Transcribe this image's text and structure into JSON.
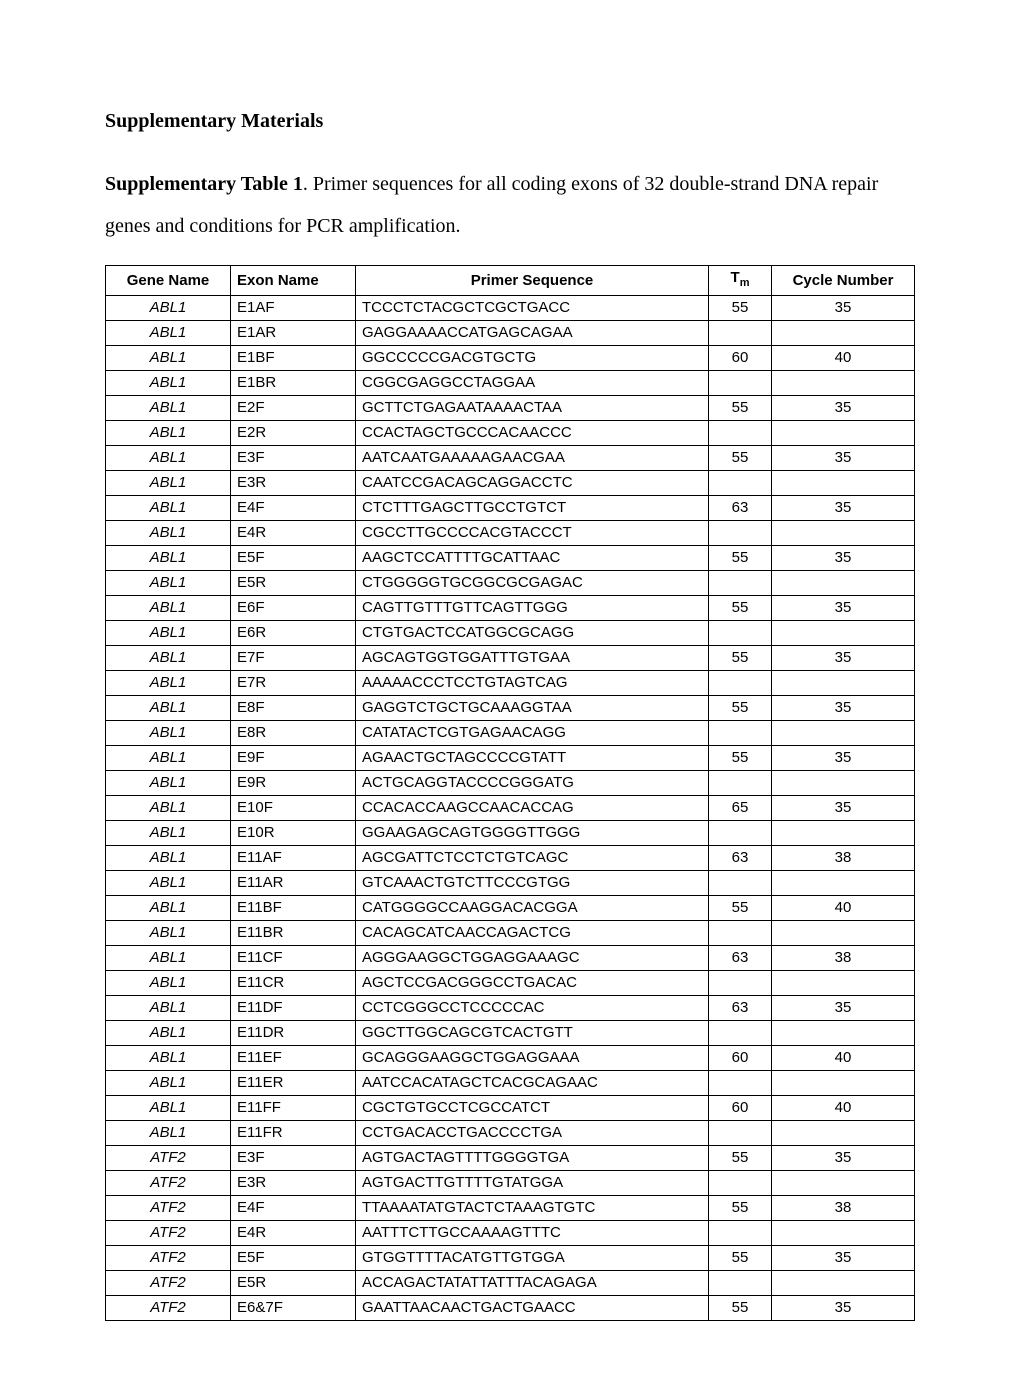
{
  "heading": "Supplementary Materials",
  "caption_bold": "Supplementary Table 1",
  "caption_rest": ". Primer sequences for all coding exons of 32 double-strand DNA repair genes and conditions for PCR amplification.",
  "columns": {
    "gene": "Gene Name",
    "exon": "Exon Name",
    "primer": "Primer Sequence",
    "tm_prefix": "T",
    "tm_sub": "m",
    "cycle": "Cycle Number"
  },
  "rows": [
    {
      "gene": "ABL1",
      "exon": "E1AF",
      "seq": "TCCCTCTACGCTCGCTGACC",
      "tm": "55",
      "cyc": "35"
    },
    {
      "gene": "ABL1",
      "exon": "E1AR",
      "seq": "GAGGAAAACCATGAGCAGAA",
      "tm": "",
      "cyc": ""
    },
    {
      "gene": "ABL1",
      "exon": "E1BF",
      "seq": "GGCCCCCGACGTGCTG",
      "tm": "60",
      "cyc": "40"
    },
    {
      "gene": "ABL1",
      "exon": "E1BR",
      "seq": "CGGCGAGGCCTAGGAA",
      "tm": "",
      "cyc": ""
    },
    {
      "gene": "ABL1",
      "exon": "E2F",
      "seq": "GCTTCTGAGAATAAAACTAA",
      "tm": "55",
      "cyc": "35"
    },
    {
      "gene": "ABL1",
      "exon": "E2R",
      "seq": "CCACTAGCTGCCCACAACCC",
      "tm": "",
      "cyc": ""
    },
    {
      "gene": "ABL1",
      "exon": "E3F",
      "seq": "AATCAATGAAAAAGAACGAA",
      "tm": "55",
      "cyc": "35"
    },
    {
      "gene": "ABL1",
      "exon": "E3R",
      "seq": "CAATCCGACAGCAGGACCTC",
      "tm": "",
      "cyc": ""
    },
    {
      "gene": "ABL1",
      "exon": "E4F",
      "seq": "CTCTTTGAGCTTGCCTGTCT",
      "tm": "63",
      "cyc": "35"
    },
    {
      "gene": "ABL1",
      "exon": "E4R",
      "seq": "CGCCTTGCCCCACGTACCCT",
      "tm": "",
      "cyc": ""
    },
    {
      "gene": "ABL1",
      "exon": "E5F",
      "seq": "AAGCTCCATTTTGCATTAAC",
      "tm": "55",
      "cyc": "35"
    },
    {
      "gene": "ABL1",
      "exon": "E5R",
      "seq": "CTGGGGGTGCGGCGCGAGAC",
      "tm": "",
      "cyc": ""
    },
    {
      "gene": "ABL1",
      "exon": "E6F",
      "seq": "CAGTTGTTTGTTCAGTTGGG",
      "tm": "55",
      "cyc": "35"
    },
    {
      "gene": "ABL1",
      "exon": "E6R",
      "seq": "CTGTGACTCCATGGCGCAGG",
      "tm": "",
      "cyc": ""
    },
    {
      "gene": "ABL1",
      "exon": "E7F",
      "seq": "AGCAGTGGTGGATTTGTGAA",
      "tm": "55",
      "cyc": "35"
    },
    {
      "gene": "ABL1",
      "exon": "E7R",
      "seq": "AAAAACCCTCCTGTAGTCAG",
      "tm": "",
      "cyc": ""
    },
    {
      "gene": "ABL1",
      "exon": "E8F",
      "seq": "GAGGTCTGCTGCAAAGGTAA",
      "tm": "55",
      "cyc": "35"
    },
    {
      "gene": "ABL1",
      "exon": "E8R",
      "seq": "CATATACTCGTGAGAACAGG",
      "tm": "",
      "cyc": ""
    },
    {
      "gene": "ABL1",
      "exon": "E9F",
      "seq": "AGAACTGCTAGCCCCGTATT",
      "tm": "55",
      "cyc": "35"
    },
    {
      "gene": "ABL1",
      "exon": "E9R",
      "seq": "ACTGCAGGTACCCCGGGATG",
      "tm": "",
      "cyc": ""
    },
    {
      "gene": "ABL1",
      "exon": "E10F",
      "seq": "CCACACCAAGCCAACACCAG",
      "tm": "65",
      "cyc": "35"
    },
    {
      "gene": "ABL1",
      "exon": "E10R",
      "seq": "GGAAGAGCAGTGGGGTTGGG",
      "tm": "",
      "cyc": ""
    },
    {
      "gene": "ABL1",
      "exon": "E11AF",
      "seq": "AGCGATTCTCCTCTGTCAGC",
      "tm": "63",
      "cyc": "38"
    },
    {
      "gene": "ABL1",
      "exon": "E11AR",
      "seq": "GTCAAACTGTCTTCCCGTGG",
      "tm": "",
      "cyc": ""
    },
    {
      "gene": "ABL1",
      "exon": "E11BF",
      "seq": "CATGGGGCCAAGGACACGGA",
      "tm": "55",
      "cyc": "40"
    },
    {
      "gene": "ABL1",
      "exon": "E11BR",
      "seq": "CACAGCATCAACCAGACTCG",
      "tm": "",
      "cyc": ""
    },
    {
      "gene": "ABL1",
      "exon": "E11CF",
      "seq": "AGGGAAGGCTGGAGGAAAGC",
      "tm": "63",
      "cyc": "38"
    },
    {
      "gene": "ABL1",
      "exon": "E11CR",
      "seq": "AGCTCCGACGGGCCTGACAC",
      "tm": "",
      "cyc": ""
    },
    {
      "gene": "ABL1",
      "exon": "E11DF",
      "seq": "CCTCGGGCCTCCCCCAC",
      "tm": "63",
      "cyc": "35"
    },
    {
      "gene": "ABL1",
      "exon": "E11DR",
      "seq": "GGCTTGGCAGCGTCACTGTT",
      "tm": "",
      "cyc": ""
    },
    {
      "gene": "ABL1",
      "exon": "E11EF",
      "seq": "GCAGGGAAGGCTGGAGGAAA",
      "tm": "60",
      "cyc": "40"
    },
    {
      "gene": "ABL1",
      "exon": "E11ER",
      "seq": "AATCCACATAGCTCACGCAGAAC",
      "tm": "",
      "cyc": ""
    },
    {
      "gene": "ABL1",
      "exon": "E11FF",
      "seq": "CGCTGTGCCTCGCCATCT",
      "tm": "60",
      "cyc": "40"
    },
    {
      "gene": "ABL1",
      "exon": "E11FR",
      "seq": "CCTGACACCTGACCCCTGA",
      "tm": "",
      "cyc": ""
    },
    {
      "gene": "ATF2",
      "exon": "E3F",
      "seq": "AGTGACTAGTTTTGGGGTGA",
      "tm": "55",
      "cyc": "35"
    },
    {
      "gene": "ATF2",
      "exon": "E3R",
      "seq": "AGTGACTTGTTTTGTATGGA",
      "tm": "",
      "cyc": ""
    },
    {
      "gene": "ATF2",
      "exon": "E4F",
      "seq": "TTAAAATATGTACTCTAAAGTGTC",
      "tm": "55",
      "cyc": "38"
    },
    {
      "gene": "ATF2",
      "exon": "E4R",
      "seq": "AATTTCTTGCCAAAAGTTTC",
      "tm": "",
      "cyc": ""
    },
    {
      "gene": "ATF2",
      "exon": "E5F",
      "seq": "GTGGTTTTACATGTTGTGGA",
      "tm": "55",
      "cyc": "35"
    },
    {
      "gene": "ATF2",
      "exon": "E5R",
      "seq": "ACCAGACTATATTATTTACAGAGA",
      "tm": "",
      "cyc": ""
    },
    {
      "gene": "ATF2",
      "exon": "E6&7F",
      "seq": "GAATTAACAACTGACTGAACC",
      "tm": "55",
      "cyc": "35"
    }
  ]
}
